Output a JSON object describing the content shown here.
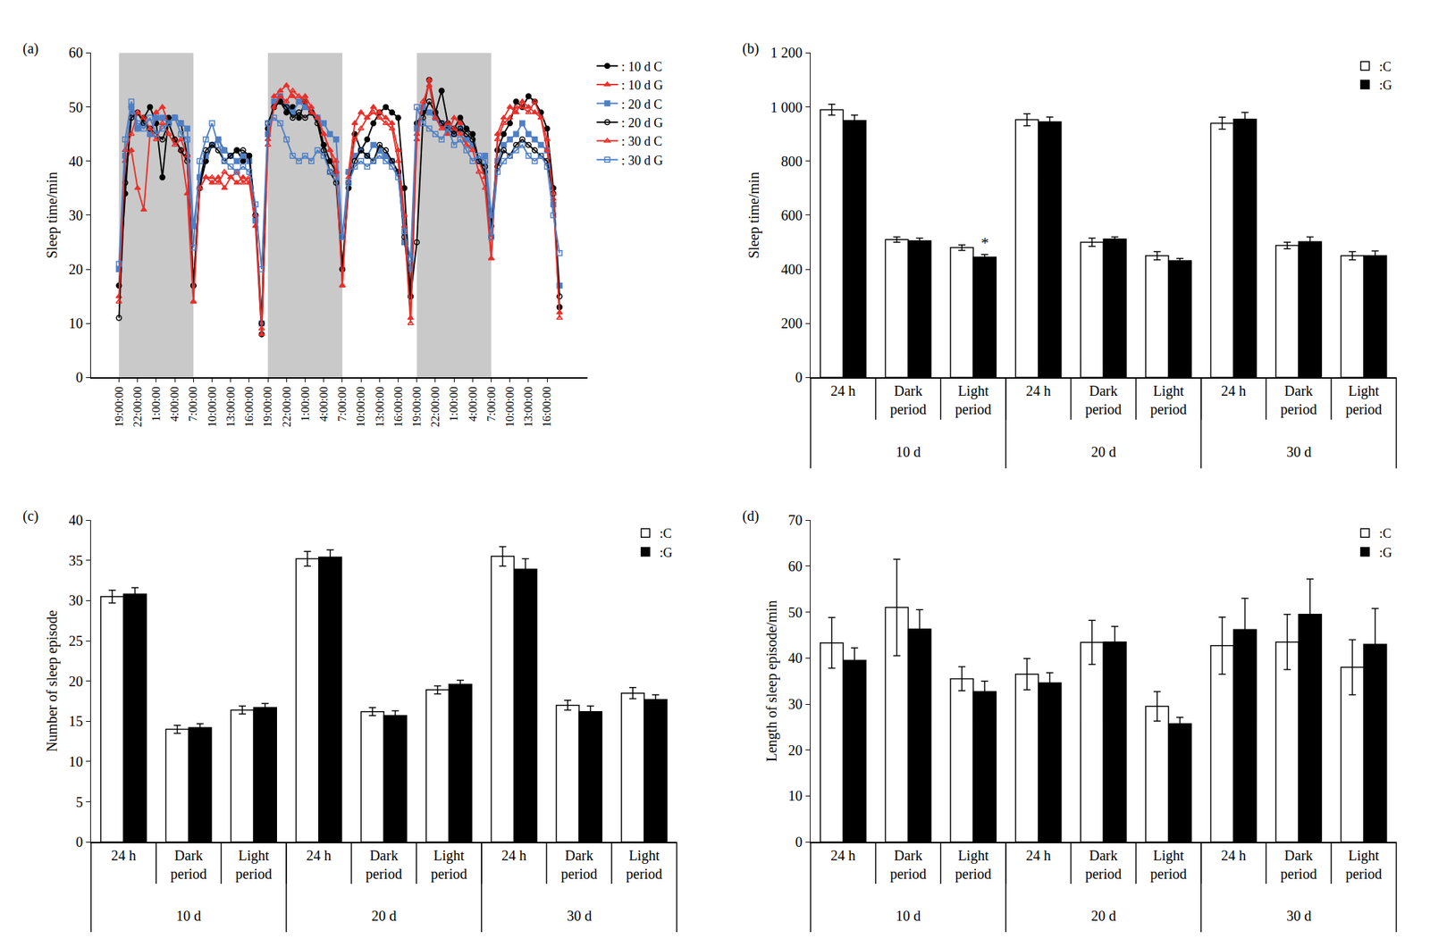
{
  "chart_data": [
    {
      "label": "(a)",
      "type": "line",
      "y_label": "Sleep time/min",
      "categories": [
        "19:00:00",
        null,
        null,
        "22:00:00",
        null,
        null,
        "1:00:00",
        null,
        null,
        "4:00:00",
        null,
        null,
        "7:00:00",
        null,
        null,
        "10:00:00",
        null,
        null,
        "13:00:00",
        null,
        null,
        "16:00:00",
        null,
        null,
        "19:00:00",
        null,
        null,
        "22:00:00",
        null,
        null,
        "1:00:00",
        null,
        null,
        "4:00:00",
        null,
        null,
        "7:00:00",
        null,
        null,
        "10:00:00",
        null,
        null,
        "13:00:00",
        null,
        null,
        "16:00:00",
        null,
        null,
        "19:00:00",
        null,
        null,
        "22:00:00",
        null,
        null,
        "1:00:00",
        null,
        null,
        "4:00:00",
        null,
        null,
        "7:00:00",
        null,
        null,
        "10:00:00",
        null,
        null,
        "13:00:00",
        null,
        null,
        "16:00:00",
        null,
        null
      ],
      "series": [
        {
          "name": ": 10 d C",
          "color": "#000000",
          "marker": "circle",
          "values": [
            17,
            34,
            50,
            46,
            48,
            50,
            47,
            37,
            48,
            48,
            47,
            41,
            17,
            35,
            40,
            43,
            44,
            42,
            41,
            42,
            40,
            41,
            30,
            8,
            46,
            50,
            51,
            49,
            50,
            48,
            51,
            49,
            48,
            43,
            40,
            38,
            20,
            35,
            45,
            42,
            44,
            47,
            49,
            50,
            49,
            48,
            35,
            15,
            47,
            49,
            55,
            49,
            53,
            47,
            46,
            48,
            46,
            45,
            40,
            38,
            28,
            42,
            45,
            47,
            51,
            50,
            52,
            51,
            49,
            46,
            35,
            13
          ]
        },
        {
          "name": ": 10 d G",
          "color": "#e8302a",
          "marker": "triangle-up",
          "values": [
            15,
            40,
            42,
            35,
            31,
            45,
            49,
            50,
            47,
            44,
            42,
            34,
            14,
            35,
            37,
            36,
            37,
            35,
            37,
            36,
            37,
            36,
            28,
            8,
            44,
            52,
            53,
            54,
            52,
            51,
            52,
            50,
            48,
            45,
            42,
            40,
            17,
            38,
            47,
            49,
            48,
            50,
            49,
            48,
            47,
            42,
            30,
            11,
            44,
            50,
            55,
            48,
            47,
            45,
            48,
            47,
            44,
            43,
            40,
            37,
            22,
            45,
            48,
            50,
            49,
            51,
            50,
            49,
            48,
            44,
            33,
            12
          ]
        },
        {
          "name": ": 20 d C",
          "color": "#4f7fc4",
          "marker": "square",
          "values": [
            20,
            41,
            50,
            46,
            47,
            45,
            48,
            48,
            47,
            48,
            47,
            46,
            28,
            37,
            41,
            43,
            44,
            42,
            41,
            40,
            41,
            40,
            29,
            10,
            45,
            51,
            52,
            50,
            49,
            51,
            50,
            49,
            48,
            47,
            45,
            44,
            26,
            38,
            41,
            42,
            41,
            43,
            42,
            41,
            40,
            38,
            25,
            20,
            46,
            50,
            49,
            48,
            47,
            46,
            45,
            46,
            44,
            43,
            40,
            41,
            30,
            40,
            43,
            44,
            45,
            47,
            45,
            44,
            43,
            42,
            32,
            17
          ]
        },
        {
          "name": ": 20 d G",
          "color": "#000000",
          "marker": "circle-open",
          "values": [
            11,
            36,
            48,
            49,
            47,
            46,
            45,
            44,
            47,
            44,
            42,
            40,
            17,
            35,
            42,
            43,
            42,
            40,
            41,
            42,
            42,
            41,
            30,
            10,
            47,
            50,
            51,
            50,
            48,
            49,
            48,
            49,
            47,
            42,
            38,
            36,
            20,
            36,
            40,
            42,
            41,
            40,
            43,
            42,
            40,
            38,
            26,
            15,
            25,
            48,
            51,
            49,
            47,
            46,
            45,
            46,
            45,
            44,
            40,
            39,
            26,
            39,
            42,
            41,
            43,
            44,
            43,
            42,
            41,
            40,
            34,
            15
          ]
        },
        {
          "name": ": 30 d C",
          "color": "#e8302a",
          "marker": "triangle-up-open",
          "values": [
            14,
            42,
            45,
            49,
            48,
            46,
            44,
            47,
            45,
            43,
            44,
            41,
            14,
            35,
            37,
            37,
            36,
            38,
            37,
            38,
            36,
            37,
            30,
            9,
            43,
            50,
            52,
            51,
            53,
            52,
            51,
            49,
            48,
            45,
            42,
            38,
            17,
            37,
            44,
            46,
            48,
            49,
            48,
            47,
            46,
            40,
            28,
            10,
            45,
            51,
            54,
            48,
            46,
            47,
            46,
            45,
            43,
            42,
            38,
            35,
            22,
            44,
            47,
            48,
            50,
            50,
            49,
            51,
            48,
            42,
            34,
            11
          ]
        },
        {
          "name": ": 30 d G",
          "color": "#4f7fc4",
          "marker": "square-open",
          "values": [
            21,
            44,
            51,
            47,
            46,
            48,
            45,
            46,
            47,
            48,
            45,
            44,
            24,
            40,
            44,
            47,
            43,
            40,
            39,
            38,
            39,
            38,
            32,
            20,
            47,
            48,
            47,
            44,
            41,
            40,
            41,
            40,
            42,
            41,
            38,
            37,
            26,
            36,
            39,
            40,
            39,
            40,
            41,
            40,
            39,
            37,
            27,
            22,
            50,
            47,
            46,
            45,
            44,
            46,
            43,
            44,
            42,
            40,
            41,
            40,
            26,
            38,
            40,
            41,
            42,
            43,
            41,
            40,
            41,
            39,
            30,
            23
          ]
        }
      ],
      "dark_periods": [
        [
          0,
          12
        ],
        [
          24,
          36
        ],
        [
          48,
          60
        ]
      ],
      "ylim": [
        0,
        60
      ],
      "yticks": [
        0,
        10,
        20,
        30,
        40,
        50,
        60
      ],
      "grid": false,
      "legend": "top right"
    },
    {
      "label": "(b)",
      "type": "bar",
      "y_label": "Sleep time/min",
      "categories": [
        "24 h",
        "Dark period",
        "Light period",
        "24 h",
        "Dark period",
        "Light period",
        "24 h",
        "Dark period",
        "Light period"
      ],
      "groups": [
        "10 d",
        "20 d",
        "30 d"
      ],
      "series": [
        {
          "name": ":C",
          "color": "#ffffff",
          "values": [
            990,
            510,
            480,
            953,
            500,
            450,
            940,
            488,
            450
          ],
          "errors": [
            20,
            10,
            10,
            22,
            15,
            15,
            22,
            12,
            15
          ]
        },
        {
          "name": ":G",
          "color": "#000000",
          "values": [
            950,
            505,
            445,
            945,
            512,
            432,
            955,
            502,
            450
          ],
          "errors": [
            20,
            10,
            10,
            18,
            8,
            8,
            25,
            18,
            18
          ]
        }
      ],
      "annotations": [
        {
          "text": "*",
          "x": 2,
          "series": ":G"
        }
      ],
      "ylim": [
        0,
        1200
      ],
      "yticks": [
        0,
        200,
        400,
        600,
        800,
        {
          "value": 1000,
          "label": "1 000"
        },
        {
          "value": 1200,
          "label": "1 200"
        }
      ],
      "grid": false,
      "legend": "top right"
    },
    {
      "label": "(c)",
      "type": "bar",
      "y_label": "Number of sleep episode",
      "categories": [
        "24 h",
        "Dark period",
        "Light period",
        "24 h",
        "Dark period",
        "Light period",
        "24 h",
        "Dark period",
        "Light period"
      ],
      "groups": [
        "10 d",
        "20 d",
        "30 d"
      ],
      "series": [
        {
          "name": ":C",
          "color": "#ffffff",
          "values": [
            30.5,
            14,
            16.4,
            35.2,
            16.2,
            18.9,
            35.5,
            17,
            18.5
          ],
          "errors": [
            0.8,
            0.5,
            0.5,
            0.9,
            0.5,
            0.5,
            1.2,
            0.6,
            0.7
          ]
        },
        {
          "name": ":G",
          "color": "#000000",
          "values": [
            30.8,
            14.2,
            16.7,
            35.4,
            15.7,
            19.6,
            33.9,
            16.2,
            17.7
          ],
          "errors": [
            0.8,
            0.5,
            0.5,
            0.9,
            0.6,
            0.5,
            1.3,
            0.7,
            0.6
          ]
        }
      ],
      "ylim": [
        0,
        40
      ],
      "yticks": [
        0,
        5,
        10,
        15,
        20,
        25,
        30,
        35,
        40
      ],
      "grid": false,
      "legend": "top right"
    },
    {
      "label": "(d)",
      "type": "bar",
      "y_label": "Length of sleep episode/min",
      "categories": [
        "24 h",
        "Dark period",
        "Light period",
        "24 h",
        "Dark period",
        "Light period",
        "24 h",
        "Dark period",
        "Light period"
      ],
      "groups": [
        "10 d",
        "20 d",
        "30 d"
      ],
      "series": [
        {
          "name": ":C",
          "color": "#ffffff",
          "values": [
            43.3,
            51,
            35.5,
            36.5,
            43.4,
            29.5,
            42.7,
            43.5,
            38
          ],
          "errors": [
            5.5,
            10.5,
            2.6,
            3.4,
            4.8,
            3.2,
            6.2,
            6,
            6
          ]
        },
        {
          "name": ":G",
          "color": "#000000",
          "values": [
            39.5,
            46.3,
            32.7,
            34.6,
            43.5,
            25.7,
            46.2,
            49.5,
            43
          ],
          "errors": [
            2.7,
            4.2,
            2.3,
            2.2,
            3.4,
            1.4,
            6.8,
            7.7,
            7.8
          ]
        }
      ],
      "ylim": [
        0,
        70
      ],
      "yticks": [
        0,
        10,
        20,
        30,
        40,
        50,
        60,
        70
      ],
      "grid": false,
      "legend": "top right"
    }
  ]
}
